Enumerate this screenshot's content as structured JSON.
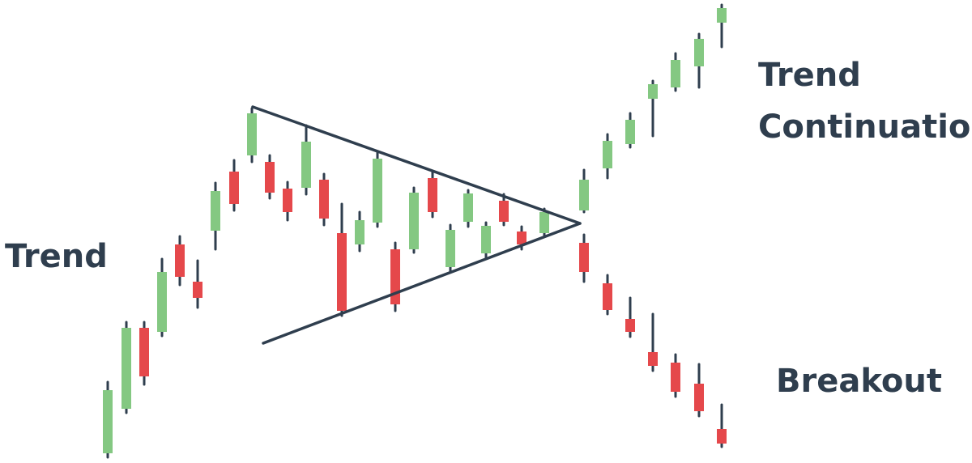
{
  "labels": {
    "trend": "Trend",
    "continuation_line1": "Trend",
    "continuation_line2": "Continuation",
    "breakout": "Breakout"
  },
  "colors": {
    "bullish": "#84c882",
    "bearish": "#e5484b",
    "wick": "#2f3e4e",
    "trendline": "#2f3e4e",
    "text": "#2f3e4e",
    "background": "#ffffff"
  }
}
